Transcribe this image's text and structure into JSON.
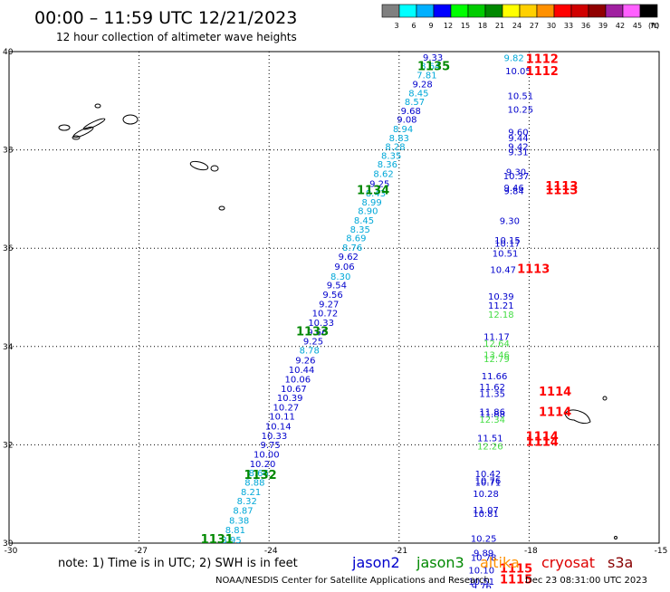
{
  "header": {
    "title": "00:00 – 11:59 UTC 12/21/2023",
    "subtitle": "12 hour collection of altimeter wave heights"
  },
  "colorbar": {
    "unit_label": "(ft)",
    "bins": [
      {
        "label": "3",
        "color": "#808080"
      },
      {
        "label": "6",
        "color": "#00ffff"
      },
      {
        "label": "9",
        "color": "#00b0ff"
      },
      {
        "label": "12",
        "color": "#0000ff"
      },
      {
        "label": "15",
        "color": "#00ff00"
      },
      {
        "label": "18",
        "color": "#00cc00"
      },
      {
        "label": "21",
        "color": "#008800"
      },
      {
        "label": "24",
        "color": "#ffff00"
      },
      {
        "label": "27",
        "color": "#ffd000"
      },
      {
        "label": "30",
        "color": "#ff9000"
      },
      {
        "label": "33",
        "color": "#ff0000"
      },
      {
        "label": "36",
        "color": "#d00000"
      },
      {
        "label": "39",
        "color": "#900000"
      },
      {
        "label": "42",
        "color": "#a020a0"
      },
      {
        "label": "45",
        "color": "#ff60ff"
      },
      {
        "label": "70",
        "color": "#000000"
      }
    ]
  },
  "footer": {
    "note": "note:  1) Time is in UTC;  2) SWH is in feet",
    "legend": [
      {
        "label": "jason2",
        "color": "#0000cc"
      },
      {
        "label": "jason3",
        "color": "#008800"
      },
      {
        "label": "altika",
        "color": "#ff9000"
      },
      {
        "label": "cryosat",
        "color": "#dd0000"
      },
      {
        "label": "s3a",
        "color": "#880000"
      }
    ],
    "credit": "NOAA/NESDIS Center for Satellite Applications and Research",
    "timestamp": "Dec 23 08:31:00 UTC 2023"
  },
  "chart_data": {
    "type": "scatter",
    "xlim": [
      -30,
      -15
    ],
    "ylim": [
      30,
      40
    ],
    "xticks": [
      -30,
      -27,
      -24,
      -21,
      -18,
      -15
    ],
    "xtick_labels": [
      "-30",
      "-27",
      "-24",
      "-21",
      "-18",
      "-15"
    ],
    "yticks": [
      30,
      32,
      34,
      36,
      38,
      40
    ],
    "ytick_labels": [
      "30",
      "32",
      "34",
      "36",
      "38",
      "40"
    ],
    "grid": true,
    "colors": {
      "blue": "#0000cc",
      "cyan": "#00a8d8",
      "lightgreen": "#44dd44",
      "green": "#008800",
      "red": "#ff0000"
    },
    "series": [
      {
        "name": "jason3",
        "points": [
          {
            "x": -20.22,
            "y": 39.82,
            "label": "9.33",
            "color": "blue"
          },
          {
            "x": -20.28,
            "y": 39.64,
            "label": "8.64",
            "color": "cyan"
          },
          {
            "x": -20.36,
            "y": 39.46,
            "label": "7.81",
            "color": "cyan"
          },
          {
            "x": -20.46,
            "y": 39.27,
            "label": "9.28",
            "color": "blue"
          },
          {
            "x": -20.55,
            "y": 39.09,
            "label": "8.45",
            "color": "cyan"
          },
          {
            "x": -20.64,
            "y": 38.91,
            "label": "8.57",
            "color": "cyan"
          },
          {
            "x": -20.73,
            "y": 38.73,
            "label": "9.68",
            "color": "blue"
          },
          {
            "x": -20.82,
            "y": 38.55,
            "label": "9.08",
            "color": "blue"
          },
          {
            "x": -20.91,
            "y": 38.36,
            "label": "8.94",
            "color": "cyan"
          },
          {
            "x": -21.0,
            "y": 38.18,
            "label": "8.83",
            "color": "cyan"
          },
          {
            "x": -21.09,
            "y": 38.0,
            "label": "8.28",
            "color": "cyan"
          },
          {
            "x": -21.18,
            "y": 37.82,
            "label": "8.35",
            "color": "cyan"
          },
          {
            "x": -21.27,
            "y": 37.64,
            "label": "8.36",
            "color": "cyan"
          },
          {
            "x": -21.36,
            "y": 37.45,
            "label": "8.62",
            "color": "cyan"
          },
          {
            "x": -21.45,
            "y": 37.25,
            "label": "9.25",
            "color": "blue"
          },
          {
            "x": -21.54,
            "y": 37.05,
            "label": "8.43",
            "color": "cyan"
          },
          {
            "x": -21.63,
            "y": 36.87,
            "label": "8.99",
            "color": "cyan"
          },
          {
            "x": -21.72,
            "y": 36.69,
            "label": "8.90",
            "color": "cyan"
          },
          {
            "x": -21.81,
            "y": 36.5,
            "label": "8.45",
            "color": "cyan"
          },
          {
            "x": -21.9,
            "y": 36.32,
            "label": "8.35",
            "color": "cyan"
          },
          {
            "x": -21.99,
            "y": 36.14,
            "label": "8.69",
            "color": "cyan"
          },
          {
            "x": -22.08,
            "y": 35.95,
            "label": "8.76",
            "color": "cyan"
          },
          {
            "x": -22.17,
            "y": 35.76,
            "label": "9.62",
            "color": "blue"
          },
          {
            "x": -22.26,
            "y": 35.56,
            "label": "9.06",
            "color": "blue"
          },
          {
            "x": -22.35,
            "y": 35.36,
            "label": "8.30",
            "color": "cyan"
          },
          {
            "x": -22.44,
            "y": 35.18,
            "label": "9.54",
            "color": "blue"
          },
          {
            "x": -22.53,
            "y": 34.99,
            "label": "9.56",
            "color": "blue"
          },
          {
            "x": -22.62,
            "y": 34.8,
            "label": "9.27",
            "color": "blue"
          },
          {
            "x": -22.71,
            "y": 34.61,
            "label": "10.72",
            "color": "blue"
          },
          {
            "x": -22.8,
            "y": 34.42,
            "label": "10.33",
            "color": "blue"
          },
          {
            "x": -22.89,
            "y": 34.23,
            "label": "9.66",
            "color": "blue"
          },
          {
            "x": -22.98,
            "y": 34.04,
            "label": "9.25",
            "color": "blue"
          },
          {
            "x": -23.07,
            "y": 33.86,
            "label": "8.78",
            "color": "cyan"
          },
          {
            "x": -23.16,
            "y": 33.66,
            "label": "9.26",
            "color": "blue"
          },
          {
            "x": -23.25,
            "y": 33.46,
            "label": "10.44",
            "color": "blue"
          },
          {
            "x": -23.34,
            "y": 33.27,
            "label": "10.06",
            "color": "blue"
          },
          {
            "x": -23.43,
            "y": 33.08,
            "label": "10.67",
            "color": "blue"
          },
          {
            "x": -23.52,
            "y": 32.89,
            "label": "10.39",
            "color": "blue"
          },
          {
            "x": -23.61,
            "y": 32.7,
            "label": "10.27",
            "color": "blue"
          },
          {
            "x": -23.7,
            "y": 32.51,
            "label": "10.11",
            "color": "blue"
          },
          {
            "x": -23.79,
            "y": 32.31,
            "label": "10.14",
            "color": "blue"
          },
          {
            "x": -23.88,
            "y": 32.12,
            "label": "10.33",
            "color": "blue"
          },
          {
            "x": -23.97,
            "y": 31.93,
            "label": "9.75",
            "color": "blue"
          },
          {
            "x": -24.06,
            "y": 31.74,
            "label": "10.00",
            "color": "blue"
          },
          {
            "x": -24.15,
            "y": 31.55,
            "label": "10.20",
            "color": "blue"
          },
          {
            "x": -24.24,
            "y": 31.36,
            "label": "8.66",
            "color": "cyan"
          },
          {
            "x": -24.33,
            "y": 31.17,
            "label": "8.88",
            "color": "cyan"
          },
          {
            "x": -24.42,
            "y": 30.98,
            "label": "8.21",
            "color": "cyan"
          },
          {
            "x": -24.51,
            "y": 30.79,
            "label": "8.32",
            "color": "cyan"
          },
          {
            "x": -24.6,
            "y": 30.6,
            "label": "8.87",
            "color": "cyan"
          },
          {
            "x": -24.69,
            "y": 30.4,
            "label": "8.38",
            "color": "cyan"
          },
          {
            "x": -24.78,
            "y": 30.2,
            "label": "8.81",
            "color": "cyan"
          },
          {
            "x": -24.87,
            "y": 30.0,
            "label": "8.95",
            "color": "cyan"
          },
          {
            "x": -18.35,
            "y": 39.81,
            "label": "9.82",
            "color": "cyan"
          },
          {
            "x": -18.25,
            "y": 39.54,
            "label": "10.05",
            "color": "blue"
          },
          {
            "x": -18.2,
            "y": 39.03,
            "label": "10.51",
            "color": "blue"
          },
          {
            "x": -18.2,
            "y": 38.76,
            "label": "10.25",
            "color": "blue"
          },
          {
            "x": -18.25,
            "y": 38.3,
            "label": "9.60",
            "color": "blue"
          },
          {
            "x": -18.25,
            "y": 38.18,
            "label": "9.44",
            "color": "blue"
          },
          {
            "x": -18.25,
            "y": 38.0,
            "label": "9.42",
            "color": "blue"
          },
          {
            "x": -18.25,
            "y": 37.89,
            "label": "9.31",
            "color": "blue"
          },
          {
            "x": -18.3,
            "y": 37.49,
            "label": "9.30",
            "color": "blue"
          },
          {
            "x": -18.3,
            "y": 37.4,
            "label": "10.37",
            "color": "blue"
          },
          {
            "x": -18.35,
            "y": 37.16,
            "label": "9.46",
            "color": "blue"
          },
          {
            "x": -18.35,
            "y": 37.1,
            "label": "9.84",
            "color": "blue"
          },
          {
            "x": -18.45,
            "y": 36.49,
            "label": "9.30",
            "color": "blue"
          },
          {
            "x": -18.5,
            "y": 36.1,
            "label": "10.15",
            "color": "blue"
          },
          {
            "x": -18.5,
            "y": 36.03,
            "label": "10.17",
            "color": "blue"
          },
          {
            "x": -18.55,
            "y": 35.83,
            "label": "10.51",
            "color": "blue"
          },
          {
            "x": -18.6,
            "y": 35.5,
            "label": "10.47",
            "color": "blue"
          },
          {
            "x": -18.65,
            "y": 34.95,
            "label": "10.39",
            "color": "blue"
          },
          {
            "x": -18.65,
            "y": 34.77,
            "label": "11.21",
            "color": "blue"
          },
          {
            "x": -18.65,
            "y": 34.59,
            "label": "12.18",
            "color": "lightgreen"
          },
          {
            "x": -18.75,
            "y": 34.13,
            "label": "11.17",
            "color": "blue"
          },
          {
            "x": -18.75,
            "y": 34.0,
            "label": "12.64",
            "color": "lightgreen"
          },
          {
            "x": -18.75,
            "y": 33.77,
            "label": "13.46",
            "color": "lightgreen"
          },
          {
            "x": -18.75,
            "y": 33.68,
            "label": "12.79",
            "color": "lightgreen"
          },
          {
            "x": -18.8,
            "y": 33.33,
            "label": "11.66",
            "color": "blue"
          },
          {
            "x": -18.85,
            "y": 33.11,
            "label": "11.62",
            "color": "blue"
          },
          {
            "x": -18.85,
            "y": 32.97,
            "label": "11.35",
            "color": "blue"
          },
          {
            "x": -18.85,
            "y": 32.61,
            "label": "11.86",
            "color": "blue"
          },
          {
            "x": -18.85,
            "y": 32.56,
            "label": "11.88",
            "color": "blue"
          },
          {
            "x": -18.85,
            "y": 32.45,
            "label": "12.34",
            "color": "lightgreen"
          },
          {
            "x": -18.9,
            "y": 32.07,
            "label": "11.51",
            "color": "blue"
          },
          {
            "x": -18.9,
            "y": 31.91,
            "label": "12.26",
            "color": "lightgreen"
          },
          {
            "x": -18.95,
            "y": 31.34,
            "label": "10.42",
            "color": "blue"
          },
          {
            "x": -18.95,
            "y": 31.21,
            "label": "10.76",
            "color": "blue"
          },
          {
            "x": -18.95,
            "y": 31.17,
            "label": "10.71",
            "color": "blue"
          },
          {
            "x": -19.0,
            "y": 30.94,
            "label": "10.28",
            "color": "blue"
          },
          {
            "x": -19.0,
            "y": 30.61,
            "label": "11.07",
            "color": "blue"
          },
          {
            "x": -19.0,
            "y": 30.53,
            "label": "10.81",
            "color": "blue"
          },
          {
            "x": -19.05,
            "y": 30.03,
            "label": "10.25",
            "color": "blue"
          },
          {
            "x": -19.05,
            "y": 29.73,
            "label": "9.89",
            "color": "blue"
          },
          {
            "x": -19.05,
            "y": 29.64,
            "label": "10.78",
            "color": "blue"
          },
          {
            "x": -19.1,
            "y": 29.38,
            "label": "10.10",
            "color": "blue"
          },
          {
            "x": -19.1,
            "y": 29.15,
            "label": "10.51",
            "color": "blue"
          },
          {
            "x": -19.1,
            "y": 29.05,
            "label": "9.76",
            "color": "blue"
          }
        ]
      }
    ],
    "pass_labels": [
      {
        "x": -20.2,
        "y": 39.62,
        "label": "1135",
        "color": "green"
      },
      {
        "x": -21.6,
        "y": 37.1,
        "label": "1134",
        "color": "green"
      },
      {
        "x": -23.0,
        "y": 34.23,
        "label": "1133",
        "color": "green"
      },
      {
        "x": -24.2,
        "y": 31.31,
        "label": "1132",
        "color": "green"
      },
      {
        "x": -25.2,
        "y": 30.0,
        "label": "1131",
        "color": "green"
      },
      {
        "x": -17.7,
        "y": 39.77,
        "label": "1112",
        "color": "red"
      },
      {
        "x": -17.7,
        "y": 39.52,
        "label": "1112",
        "color": "red"
      },
      {
        "x": -17.25,
        "y": 37.18,
        "label": "1113",
        "color": "red"
      },
      {
        "x": -17.25,
        "y": 37.1,
        "label": "1113",
        "color": "red"
      },
      {
        "x": -17.9,
        "y": 35.5,
        "label": "1113",
        "color": "red"
      },
      {
        "x": -17.4,
        "y": 33.0,
        "label": "1114",
        "color": "red"
      },
      {
        "x": -17.4,
        "y": 32.59,
        "label": "1114",
        "color": "red"
      },
      {
        "x": -17.7,
        "y": 32.09,
        "label": "1114",
        "color": "red"
      },
      {
        "x": -17.7,
        "y": 31.98,
        "label": "1114",
        "color": "red"
      },
      {
        "x": -18.3,
        "y": 29.4,
        "label": "1115",
        "color": "red"
      },
      {
        "x": -18.3,
        "y": 29.18,
        "label": "1115",
        "color": "red"
      }
    ]
  }
}
